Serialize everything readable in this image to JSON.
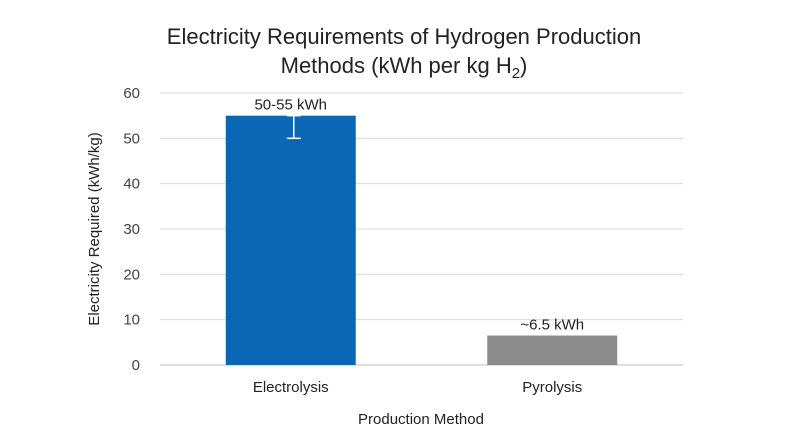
{
  "chart_data": {
    "type": "bar",
    "title_line1": "Electricity Requirements of Hydrogen Production",
    "title_line2_main": "Methods (kWh per kg H",
    "title_line2_sub": "2",
    "title_line2_end": ")",
    "xlabel": "Production Method",
    "ylabel": "Electricity Required (kWh/kg)",
    "categories": [
      "Electrolysis",
      "Pyrolysis"
    ],
    "values": [
      55,
      6.5
    ],
    "error_ranges": [
      [
        50,
        55
      ],
      null
    ],
    "data_labels": [
      "50-55 kWh",
      "~6.5 kWh"
    ],
    "colors": [
      "#0a67b5",
      "#8c8c8c"
    ],
    "ylim": [
      0,
      60
    ],
    "yticks": [
      0,
      10,
      20,
      30,
      40,
      50,
      60
    ],
    "grid": true,
    "legend": "none"
  }
}
